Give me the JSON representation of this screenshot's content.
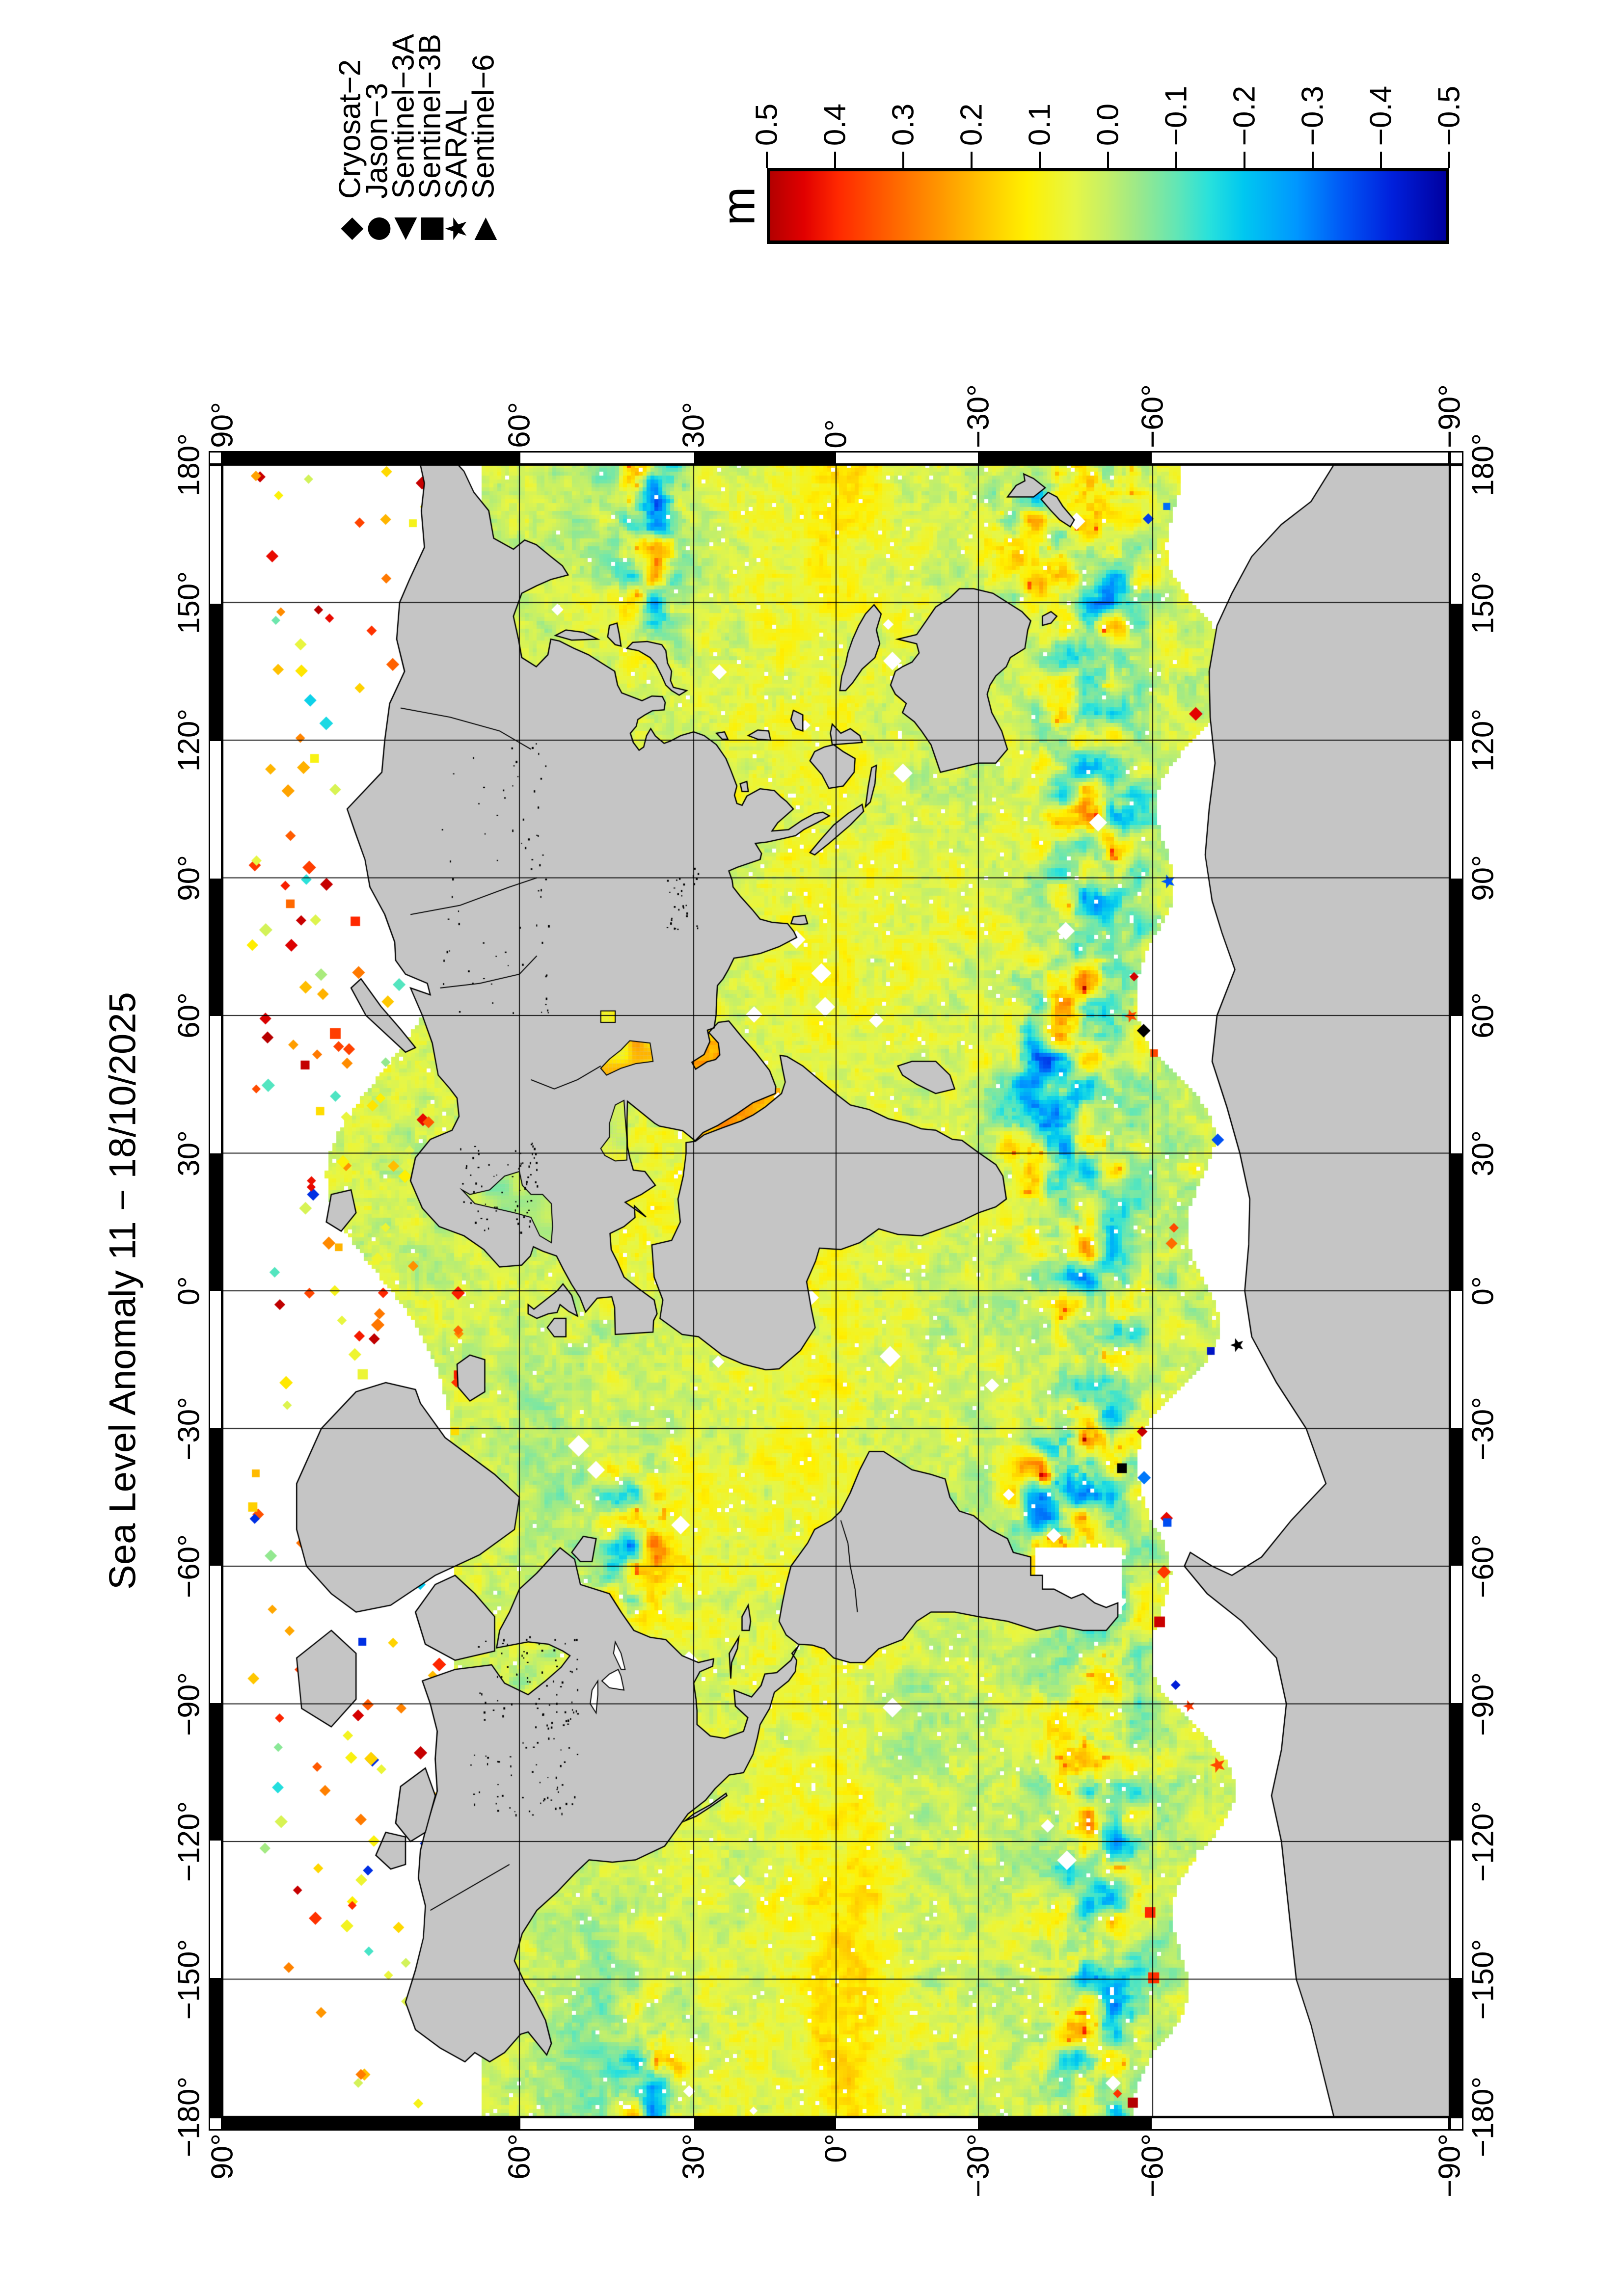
{
  "title": "Sea Level Anomaly 11 − 18/10/2025",
  "legend": {
    "items": [
      {
        "label": "Cryosat−2",
        "symbol": "diamond-icon",
        "glyph": "◆"
      },
      {
        "label": "Jason−3",
        "symbol": "circle-icon",
        "glyph": "●"
      },
      {
        "label": "Sentinel−3A",
        "symbol": "triangle-left-icon",
        "glyph": "◀"
      },
      {
        "label": "Sentinel−3B",
        "symbol": "square-icon",
        "glyph": "■"
      },
      {
        "label": "SARAL",
        "symbol": "star-icon",
        "glyph": "★"
      },
      {
        "label": "Sentinel−6",
        "symbol": "triangle-right-icon",
        "glyph": "▶"
      }
    ]
  },
  "colorbar": {
    "unit": "m",
    "tick_labels": [
      "0.5",
      "0.4",
      "0.3",
      "0.2",
      "0.1",
      "0.0",
      "−0.1",
      "−0.2",
      "−0.3",
      "−0.4",
      "−0.5"
    ],
    "stops": [
      [
        0.0,
        "#b40000"
      ],
      [
        0.05,
        "#e10000"
      ],
      [
        0.1,
        "#ff2800"
      ],
      [
        0.18,
        "#ff6400"
      ],
      [
        0.25,
        "#ff9600"
      ],
      [
        0.32,
        "#ffc800"
      ],
      [
        0.38,
        "#fff000"
      ],
      [
        0.45,
        "#e6f646"
      ],
      [
        0.5,
        "#c3ef69"
      ],
      [
        0.55,
        "#96e88e"
      ],
      [
        0.6,
        "#64e6b4"
      ],
      [
        0.65,
        "#28e1dc"
      ],
      [
        0.7,
        "#00c8f0"
      ],
      [
        0.78,
        "#0096ff"
      ],
      [
        0.85,
        "#0055f5"
      ],
      [
        0.92,
        "#0020dc"
      ],
      [
        1.0,
        "#0000a0"
      ]
    ]
  },
  "axes": {
    "lat_labels": [
      "90°",
      "60°",
      "30°",
      "0°",
      "−30°",
      "−60°",
      "−90°"
    ],
    "lon_labels": [
      "180°",
      "150°",
      "120°",
      "90°",
      "60°",
      "30°",
      "0°",
      "−30°",
      "−60°",
      "−90°",
      "−120°",
      "−150°",
      "−180°"
    ]
  },
  "map": {
    "land_color": "#c5c5c5",
    "coast_color": "#000000",
    "grid_color": "#000000",
    "nodata_color": "#ffffff"
  }
}
